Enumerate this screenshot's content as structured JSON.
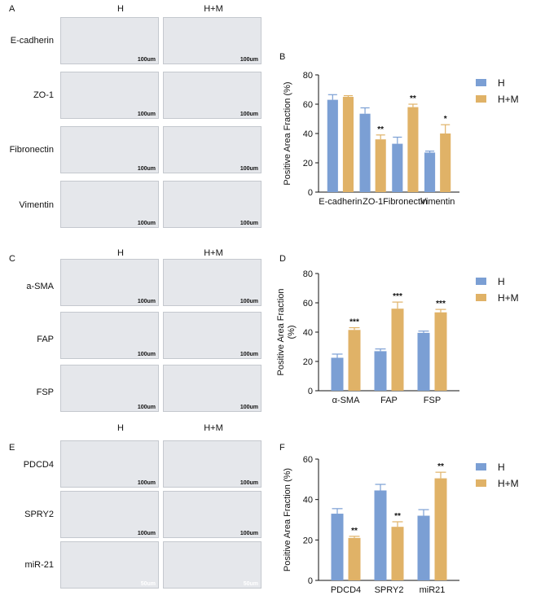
{
  "sections": [
    {
      "letter": "A",
      "col_heads": [
        "H",
        "H+M"
      ],
      "rows": [
        {
          "label": "E-cadherin",
          "scale": [
            "100um",
            "100um"
          ]
        },
        {
          "label": "ZO-1",
          "scale": [
            "100um",
            "100um"
          ]
        },
        {
          "label": "Fibronectin",
          "scale": [
            "100um",
            "100um"
          ]
        },
        {
          "label": "Vimentin",
          "scale": [
            "100um",
            "100um"
          ]
        }
      ]
    },
    {
      "letter": "C",
      "col_heads": [
        "H",
        "H+M"
      ],
      "rows": [
        {
          "label": "a-SMA",
          "scale": [
            "100um",
            "100um"
          ]
        },
        {
          "label": "FAP",
          "scale": [
            "100um",
            "100um"
          ]
        },
        {
          "label": "FSP",
          "scale": [
            "100um",
            "100um"
          ]
        }
      ]
    },
    {
      "letter": "E",
      "col_heads": [
        "H",
        "H+M"
      ],
      "rows": [
        {
          "label": "PDCD4",
          "scale": [
            "100um",
            "100um"
          ]
        },
        {
          "label": "SPRY2",
          "scale": [
            "100um",
            "100um"
          ]
        },
        {
          "label": "miR-21",
          "scale": [
            "50um",
            "50um"
          ]
        }
      ]
    }
  ],
  "colors": {
    "H": "#7b9fd4",
    "HM": "#e0b267",
    "ecad": [
      "#9a5a2c",
      "#dccbc0"
    ],
    "zo1": [
      "#8d6a8a",
      "#8e6c95"
    ],
    "fibro": [
      "#a07d55",
      "#7a4a24"
    ],
    "vim": [
      "#b8b6cc",
      "#8a6450"
    ],
    "asma": [
      "#c4a489",
      "#b78562"
    ],
    "fap": [
      "#d5cdd5",
      "#c9b5a4"
    ],
    "fsp": [
      "#b08563",
      "#9c7055"
    ],
    "pdcd4": [
      "#b4926f",
      "#cdbdae"
    ],
    "spry2": [
      "#8e5a34",
      "#a37a5e"
    ],
    "mir21": [
      "#5a3bb5",
      "#b0306e"
    ]
  },
  "chart_data": [
    {
      "letter": "B",
      "type": "bar",
      "ylabel": "Positive Area Fraction (%)",
      "ylim": [
        0,
        80
      ],
      "yticks": [
        "0",
        "20",
        "40",
        "60",
        "80"
      ],
      "categories": [
        "E-cadherin",
        "ZO-1",
        "Fibronectin",
        "Vimentin"
      ],
      "series": [
        {
          "name": "H",
          "values": [
            63,
            53.5,
            33,
            27
          ],
          "errors": [
            3.5,
            4,
            4.5,
            1
          ]
        },
        {
          "name": "H+M",
          "values": [
            65,
            36,
            58,
            40
          ],
          "errors": [
            0.8,
            3,
            2,
            6
          ]
        }
      ],
      "annotations": [
        "",
        "**",
        "**",
        "*"
      ],
      "legend": "top-right"
    },
    {
      "letter": "D",
      "type": "bar",
      "ylabel": "Positive Area Fraction (%)",
      "ylim": [
        0,
        80
      ],
      "yticks": [
        "0",
        "20",
        "40",
        "60",
        "80"
      ],
      "categories": [
        "α-SMA",
        "FAP",
        "FSP"
      ],
      "series": [
        {
          "name": "H",
          "values": [
            22.5,
            27,
            39.5
          ],
          "errors": [
            2.5,
            1.5,
            1.2
          ]
        },
        {
          "name": "H+M",
          "values": [
            41.5,
            56,
            53.5
          ],
          "errors": [
            1.5,
            4.5,
            2
          ]
        }
      ],
      "annotations": [
        "***",
        "***",
        "***"
      ],
      "legend": "top-right"
    },
    {
      "letter": "F",
      "type": "bar",
      "ylabel": "Positive Area Fraction (%)",
      "ylim": [
        0,
        60
      ],
      "yticks": [
        "0",
        "20",
        "40",
        "60"
      ],
      "categories": [
        "PDCD4",
        "SPRY2",
        "miR21"
      ],
      "series": [
        {
          "name": "H",
          "values": [
            33,
            44.5,
            32
          ],
          "errors": [
            2.5,
            3,
            3
          ]
        },
        {
          "name": "H+M",
          "values": [
            21,
            26.5,
            50.5
          ],
          "errors": [
            0.8,
            2.5,
            3
          ]
        }
      ],
      "annotations": [
        "**",
        "**",
        "**"
      ],
      "legend": "top-right"
    }
  ]
}
